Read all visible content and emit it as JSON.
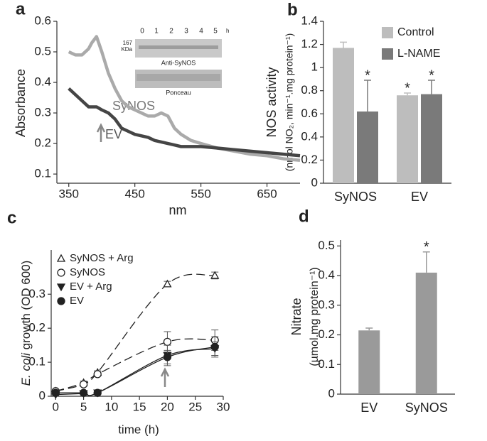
{
  "chart_data": [
    {
      "type": "line",
      "panel": "a",
      "x_label": "nm",
      "y_label": "Absorbance",
      "xlim": [
        332,
        700
      ],
      "xticks": [
        350,
        450,
        550,
        650
      ],
      "ylim": [
        0.07,
        0.6
      ],
      "yticks": [
        0.1,
        0.2,
        0.3,
        0.4,
        0.5,
        0.6
      ],
      "x": [
        350,
        360,
        370,
        380,
        385,
        392,
        400,
        410,
        420,
        430,
        440,
        450,
        460,
        470,
        480,
        490,
        500,
        510,
        520,
        535,
        550,
        575,
        600,
        625,
        650,
        675,
        700
      ],
      "series": [
        {
          "name": "SyNOS",
          "color": "#aaaaaa",
          "values": [
            0.5,
            0.49,
            0.49,
            0.51,
            0.53,
            0.55,
            0.5,
            0.43,
            0.38,
            0.34,
            0.32,
            0.31,
            0.3,
            0.29,
            0.29,
            0.3,
            0.29,
            0.25,
            0.23,
            0.21,
            0.2,
            0.185,
            0.175,
            0.165,
            0.16,
            0.15,
            0.145
          ]
        },
        {
          "name": "EV",
          "color": "#454545",
          "values": [
            0.38,
            0.36,
            0.34,
            0.32,
            0.32,
            0.32,
            0.31,
            0.3,
            0.28,
            0.25,
            0.24,
            0.23,
            0.225,
            0.22,
            0.21,
            0.205,
            0.2,
            0.195,
            0.19,
            0.19,
            0.19,
            0.185,
            0.18,
            0.175,
            0.17,
            0.165,
            0.16
          ]
        }
      ],
      "inset": {
        "lanes": [
          0,
          1,
          2,
          3,
          4,
          5
        ],
        "unit": "h",
        "marker": "167",
        "marker_unit": "KDa",
        "blots": [
          "Anti-SyNOS",
          "Ponceau"
        ]
      }
    },
    {
      "type": "bar",
      "panel": "b",
      "y_label": [
        "NOS activity",
        "(nmol NO₂, min⁻¹.mg protein⁻¹)"
      ],
      "categories": [
        "SyNOS",
        "EV"
      ],
      "ylim": [
        0,
        1.4
      ],
      "yticks": [
        0,
        0.2,
        0.4,
        0.6,
        0.8,
        1,
        1.2,
        1.4
      ],
      "series": [
        {
          "name": "Control",
          "color": "#bdbdbd",
          "values": [
            1.17,
            0.76
          ],
          "errors": [
            0.05,
            0.02
          ],
          "annotations": [
            null,
            "*"
          ]
        },
        {
          "name": "L-NAME",
          "color": "#7a7a7a",
          "values": [
            0.62,
            0.77
          ],
          "errors": [
            0.27,
            0.12
          ],
          "annotations": [
            "*",
            "*"
          ]
        }
      ]
    },
    {
      "type": "scatter",
      "panel": "c",
      "x_label": "time (h)",
      "y_label": [
        "E. coli",
        " growth (OD 600)"
      ],
      "xlim": [
        -0.8,
        30
      ],
      "xticks": [
        0,
        5,
        10,
        15,
        20,
        25,
        30
      ],
      "ylim": [
        0,
        0.43
      ],
      "yticks": [
        0,
        0.1,
        0.2,
        0.3
      ],
      "x": [
        0,
        5,
        7.5,
        20,
        28.5
      ],
      "series": [
        {
          "name": "SyNOS + Arg",
          "color": "#222222",
          "marker": "triangle-open",
          "line_style": "dashed",
          "values": [
            0.015,
            0.04,
            0.07,
            0.33,
            0.355
          ],
          "errors": [
            0.005,
            0.005,
            0.005,
            0.008,
            0.01
          ]
        },
        {
          "name": "SyNOS",
          "color": "#222222",
          "marker": "circle-open",
          "line_style": "dashed",
          "values": [
            0.015,
            0.035,
            0.065,
            0.16,
            0.165
          ],
          "errors": [
            0.005,
            0.005,
            0.005,
            0.03,
            0.03
          ]
        },
        {
          "name": "EV + Arg",
          "color": "#222222",
          "marker": "triangle-down",
          "line_style": "solid",
          "values": [
            0.005,
            0.008,
            0.01,
            0.12,
            0.14
          ],
          "errors": [
            0.003,
            0.003,
            0.003,
            0.03,
            0.02
          ]
        },
        {
          "name": "EV",
          "color": "#222222",
          "marker": "circle",
          "line_style": "solid",
          "values": [
            0.01,
            0.01,
            0.01,
            0.115,
            0.145
          ],
          "errors": [
            0.003,
            0.003,
            0.003,
            0.02,
            0.03
          ]
        }
      ]
    },
    {
      "type": "bar",
      "panel": "d",
      "y_label": [
        "Nitrate",
        "(µmol.mg protein⁻¹)"
      ],
      "categories": [
        "EV",
        "SyNOS"
      ],
      "color": "#9a9a9a",
      "values": [
        0.215,
        0.41
      ],
      "errors": [
        0.008,
        0.07
      ],
      "annotations": [
        null,
        "*"
      ],
      "ylim": [
        0,
        0.52
      ],
      "yticks": [
        0,
        0.1,
        0.2,
        0.3,
        0.4,
        0.5
      ]
    }
  ]
}
